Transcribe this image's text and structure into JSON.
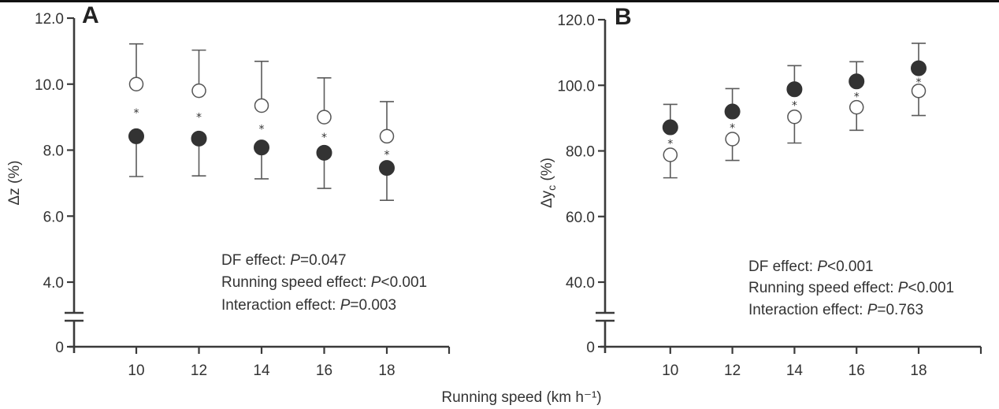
{
  "figure": {
    "xlabel": "Running speed (km h⁻¹)"
  },
  "chart_data": [
    {
      "type": "scatter",
      "panel": "A",
      "title": "",
      "xlabel": "Running speed (km h⁻¹)",
      "ylabel": "Δz (%)",
      "x": [
        10,
        12,
        14,
        16,
        18
      ],
      "xticks": [
        "10",
        "12",
        "14",
        "16",
        "18"
      ],
      "xlim": [
        8,
        20
      ],
      "yticks": [
        "0",
        "4.0",
        "6.0",
        "8.0",
        "10.0",
        "12.0"
      ],
      "ylim": [
        0,
        12
      ],
      "axis_break": [
        0,
        4
      ],
      "grid": false,
      "series": [
        {
          "name": "open",
          "marker": "open-circle",
          "values": [
            10.0,
            9.8,
            9.35,
            9.0,
            8.42
          ],
          "error_upper": [
            11.22,
            11.03,
            10.69,
            10.19,
            9.47
          ],
          "error_direction": "up"
        },
        {
          "name": "filled",
          "marker": "filled-circle",
          "values": [
            8.42,
            8.35,
            8.08,
            7.92,
            7.46
          ],
          "error_lower": [
            7.2,
            7.22,
            7.13,
            6.84,
            6.48
          ],
          "error_direction": "down"
        }
      ],
      "significance": [
        "*",
        "*",
        "*",
        "*",
        "*"
      ],
      "annotations": [
        {
          "label": "DF effect: ",
          "p": "P",
          "value": "=0.047"
        },
        {
          "label": "Running speed effect: ",
          "p": "P",
          "value": "<0.001"
        },
        {
          "label": "Interaction effect: ",
          "p": "P",
          "value": "=0.003"
        }
      ]
    },
    {
      "type": "scatter",
      "panel": "B",
      "title": "",
      "xlabel": "Running speed (km h⁻¹)",
      "ylabel_main": "Δy",
      "ylabel_sub": "c",
      "ylabel_unit": " (%)",
      "x": [
        10,
        12,
        14,
        16,
        18
      ],
      "xticks": [
        "10",
        "12",
        "14",
        "16",
        "18"
      ],
      "xlim": [
        8,
        20
      ],
      "yticks": [
        "0",
        "40.0",
        "60.0",
        "80.0",
        "100.0",
        "120.0"
      ],
      "ylim": [
        0,
        120
      ],
      "axis_break": [
        0,
        40
      ],
      "grid": false,
      "series": [
        {
          "name": "filled",
          "marker": "filled-circle",
          "values": [
            87.2,
            92.0,
            98.8,
            101.2,
            105.2
          ],
          "error_upper": [
            94.2,
            99.0,
            106.0,
            107.2,
            112.8
          ],
          "error_direction": "up"
        },
        {
          "name": "open",
          "marker": "open-circle",
          "values": [
            78.8,
            83.6,
            90.4,
            93.3,
            98.3
          ],
          "error_lower": [
            71.8,
            77.1,
            82.4,
            86.3,
            90.8
          ],
          "error_direction": "down"
        }
      ],
      "significance": [
        "*",
        "*",
        "*",
        "*",
        "*"
      ],
      "annotations": [
        {
          "label": "DF effect: ",
          "p": "P",
          "value": "<0.001"
        },
        {
          "label": "Running speed effect: ",
          "p": "P",
          "value": "<0.001"
        },
        {
          "label": "Interaction effect: ",
          "p": "P",
          "value": "=0.763"
        }
      ]
    }
  ]
}
